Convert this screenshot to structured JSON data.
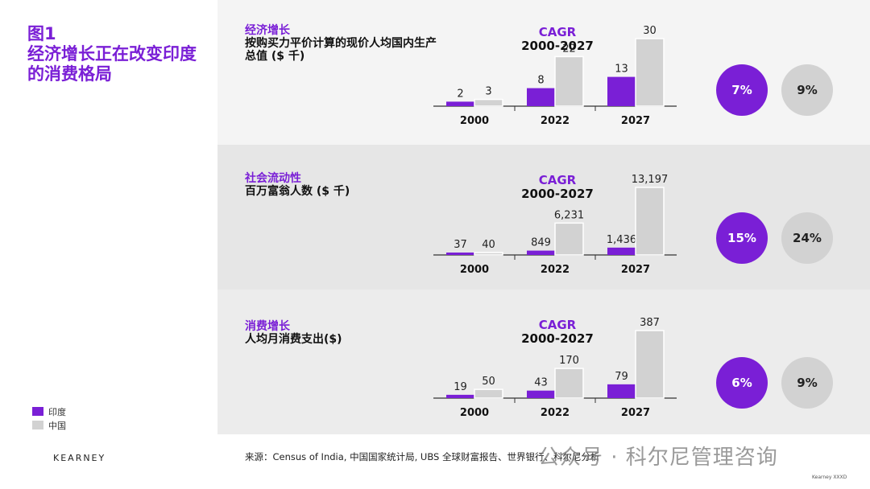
{
  "figure_title": "图1\n经济增长正在改变印度的消费格局",
  "legend": [
    {
      "label": "印度",
      "color": "#7a1fd6"
    },
    {
      "label": "中国",
      "color": "#d2d2d2"
    }
  ],
  "brand": "KEARNEY",
  "source": "来源：Census of India, 中国国家统计局, UBS 全球财富报告、世界银行、科尔尼分析",
  "watermark": "公众号 · 科尔尼管理咨询",
  "footnote": "Kearney XXXD",
  "colors": {
    "india": "#7a1fd6",
    "china": "#d2d2d2",
    "axis": "#333333"
  },
  "panels": [
    {
      "title": "经济增长",
      "subtitle": "按购买力平价计算的现价人均国内生产总值 ($ 千)",
      "cagr_label": "CAGR",
      "cagr_period": "2000-2027",
      "cagr_india": "7%",
      "cagr_china": "9%"
    },
    {
      "title": "社会流动性",
      "subtitle": "百万富翁人数 ($ 千)",
      "cagr_label": "CAGR",
      "cagr_period": "2000-2027",
      "cagr_india": "15%",
      "cagr_china": "24%"
    },
    {
      "title": "消费增长",
      "subtitle": "人均月消费支出($)",
      "cagr_label": "CAGR",
      "cagr_period": "2000-2027",
      "cagr_india": "6%",
      "cagr_china": "9%"
    }
  ],
  "chart_data": [
    {
      "type": "bar",
      "title": "经济增长",
      "ylabel": "按购买力平价计算的现价人均国内生产总值 ($ 千)",
      "categories": [
        "2000",
        "2022",
        "2027"
      ],
      "ylim": [
        0,
        30
      ],
      "series": [
        {
          "name": "印度",
          "values": [
            2,
            8,
            13
          ],
          "labels": [
            "2",
            "8",
            "13"
          ]
        },
        {
          "name": "中国",
          "values": [
            3,
            22,
            30
          ],
          "labels": [
            "3",
            "22",
            "30"
          ]
        }
      ]
    },
    {
      "type": "bar",
      "title": "社会流动性",
      "ylabel": "百万富翁人数 ($ 千)",
      "categories": [
        "2000",
        "2022",
        "2027"
      ],
      "ylim": [
        0,
        13197
      ],
      "series": [
        {
          "name": "印度",
          "values": [
            37,
            849,
            1436
          ],
          "labels": [
            "37",
            "849",
            "1,436"
          ]
        },
        {
          "name": "中国",
          "values": [
            40,
            6231,
            13197
          ],
          "labels": [
            "40",
            "6,231",
            "13,197"
          ]
        }
      ]
    },
    {
      "type": "bar",
      "title": "消费增长",
      "ylabel": "人均月消费支出($)",
      "categories": [
        "2000",
        "2022",
        "2027"
      ],
      "ylim": [
        0,
        387
      ],
      "series": [
        {
          "name": "印度",
          "values": [
            19,
            43,
            79
          ],
          "labels": [
            "19",
            "43",
            "79"
          ]
        },
        {
          "name": "中国",
          "values": [
            50,
            170,
            387
          ],
          "labels": [
            "50",
            "170",
            "387"
          ]
        }
      ]
    }
  ]
}
